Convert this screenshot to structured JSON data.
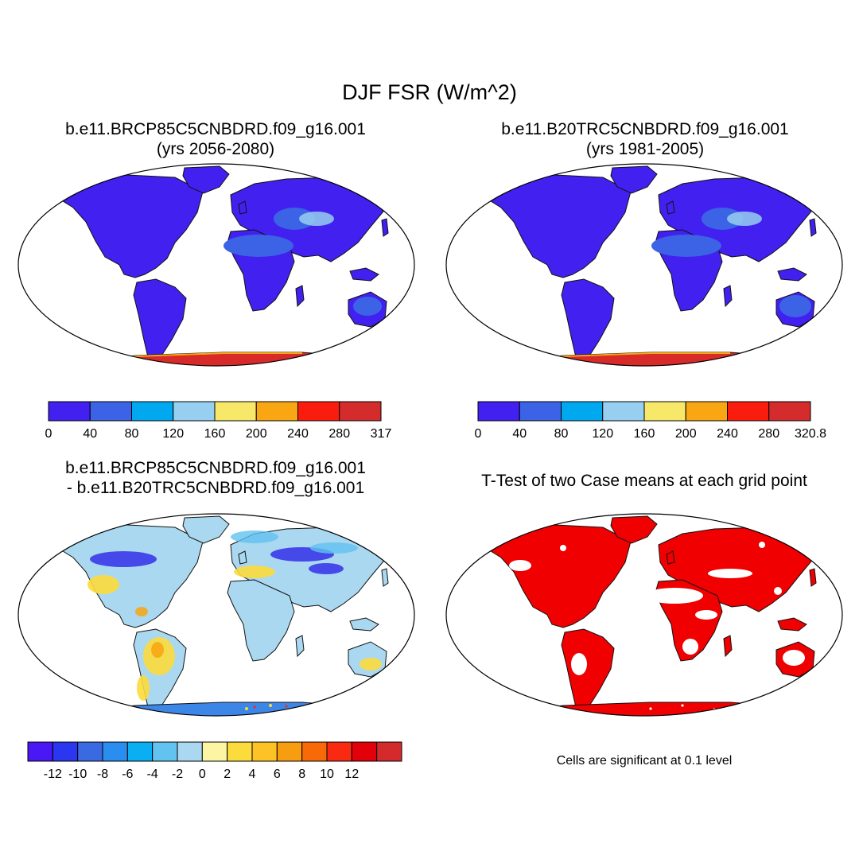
{
  "figure": {
    "title": "DJF FSR (W/m^2)"
  },
  "panels": [
    {
      "id": "case",
      "title_line1": "b.e11.BRCP85C5CNBDRD.f09_g16.001",
      "title_line2": "(yrs 2056-2080)",
      "colorbar": {
        "colors": [
          "#4220f0",
          "#3c62e6",
          "#00a8f0",
          "#96cff0",
          "#f8e86a",
          "#f8a612",
          "#fa1c0c",
          "#d42c2c"
        ],
        "labels": [
          "0",
          "40",
          "80",
          "120",
          "160",
          "200",
          "240",
          "280",
          "317"
        ]
      }
    },
    {
      "id": "control",
      "title_line1": "b.e11.B20TRC5CNBDRD.f09_g16.001",
      "title_line2": "(yrs 1981-2005)",
      "colorbar": {
        "colors": [
          "#4220f0",
          "#3c62e6",
          "#00a8f0",
          "#96cff0",
          "#f8e86a",
          "#f8a612",
          "#fa1c0c",
          "#d42c2c"
        ],
        "labels": [
          "0",
          "40",
          "80",
          "120",
          "160",
          "200",
          "240",
          "280",
          "320.8"
        ]
      }
    },
    {
      "id": "difference",
      "title_line1": "b.e11.BRCP85C5CNBDRD.f09_g16.001",
      "title_line2": "- b.e11.B20TRC5CNBDRD.f09_g16.001",
      "colorbar": {
        "colors": [
          "#4a18f4",
          "#2a36f0",
          "#3a6ae2",
          "#2a8ef0",
          "#0aaef2",
          "#62c2f0",
          "#aad8f0",
          "#fcf6a4",
          "#fcdc3c",
          "#fcc226",
          "#f89c10",
          "#f86a08",
          "#fa2a12",
          "#e2000a",
          "#d42a2c"
        ],
        "labels": [
          "-12",
          "-10",
          "-8",
          "-6",
          "-4",
          "-2",
          "0",
          "2",
          "4",
          "6",
          "8",
          "10",
          "12"
        ]
      }
    },
    {
      "id": "ttest",
      "title_line1": "T-Test of two Case means at each grid point",
      "title_line2": "",
      "note": "Cells are significant at 0.1 level"
    }
  ],
  "colors": {
    "land_case": "#4220f0",
    "land_mid": "#3c62e6",
    "sahara": "#5a86e8",
    "antarctica": "#d82a28",
    "diff_base": "#aad8f0",
    "diff_blue": "#3a3ae8",
    "diff_yellow": "#fcdc3c",
    "diff_orange": "#f8a612",
    "significant": "#f00000"
  }
}
